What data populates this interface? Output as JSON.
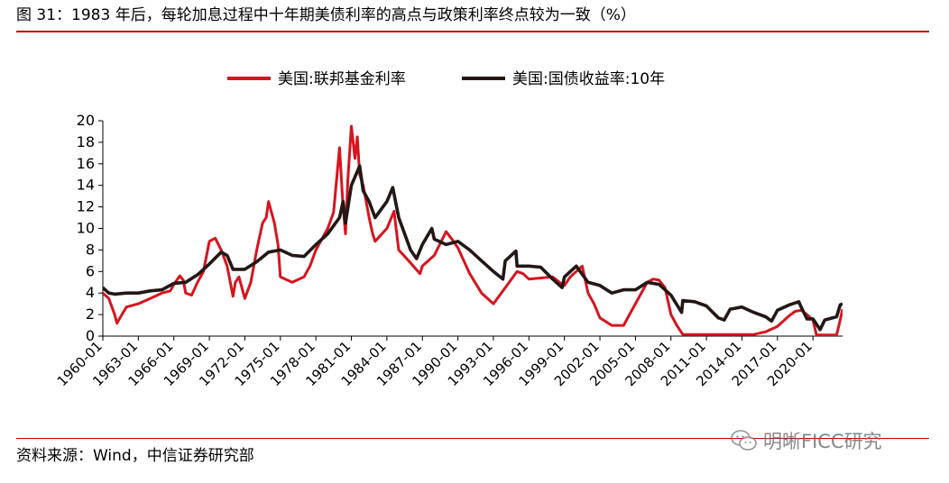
{
  "figure": {
    "title": "图 31：1983 年后，每轮加息过程中十年期美债利率的高点与政策利率终点较为一致（%）",
    "source": "资料来源：Wind，中信证券研究部",
    "watermark": "明晰FICC研究"
  },
  "chart_data": {
    "type": "line",
    "x_unit": "year",
    "xlim": [
      1960,
      2022.5
    ],
    "ylim": [
      0,
      20
    ],
    "y_ticks": [
      0,
      2,
      4,
      6,
      8,
      10,
      12,
      14,
      16,
      18,
      20
    ],
    "x_tick_labels": [
      "1960-01",
      "1963-01",
      "1966-01",
      "1969-01",
      "1972-01",
      "1975-01",
      "1978-01",
      "1981-01",
      "1984-01",
      "1987-01",
      "1990-01",
      "1993-01",
      "1996-01",
      "1999-01",
      "2002-01",
      "2005-01",
      "2008-01",
      "2011-01",
      "2014-01",
      "2017-01",
      "2020-01"
    ],
    "x_tick_values": [
      1960,
      1963,
      1966,
      1969,
      1972,
      1975,
      1978,
      1981,
      1984,
      1987,
      1990,
      1993,
      1996,
      1999,
      2002,
      2005,
      2008,
      2011,
      2014,
      2017,
      2020
    ],
    "legend": {
      "position": "top-center"
    },
    "grid": false,
    "series": [
      {
        "name": "美国:联邦基金利率",
        "color": "#d7141e",
        "x": [
          1960,
          1960.5,
          1961,
          1961.2,
          1961.5,
          1962,
          1963,
          1964,
          1965,
          1965.7,
          1966,
          1966.5,
          1966.8,
          1967,
          1967.5,
          1968,
          1968.5,
          1969,
          1969.5,
          1970,
          1970.5,
          1971,
          1971.2,
          1971.5,
          1972,
          1972.5,
          1973,
          1973.5,
          1973.8,
          1974,
          1974.5,
          1974.8,
          1975,
          1976,
          1977,
          1977.5,
          1978,
          1979,
          1979.5,
          1980,
          1980.3,
          1980.5,
          1980.7,
          1981,
          1981.3,
          1981.5,
          1981.7,
          1982,
          1982.5,
          1982.8,
          1983,
          1984,
          1984.6,
          1985,
          1986,
          1986.8,
          1987,
          1988,
          1989,
          1989.5,
          1990,
          1991,
          1992,
          1993,
          1994,
          1995,
          1995.5,
          1996,
          1998,
          1998.8,
          1999,
          1999.5,
          2000,
          2000.5,
          2001,
          2001.5,
          2002,
          2003,
          2004,
          2004.5,
          2005,
          2006,
          2006.5,
          2007,
          2007.5,
          2008,
          2008.5,
          2009,
          2015,
          2016,
          2017,
          2018,
          2018.5,
          2019,
          2019.5,
          2020,
          2020.3,
          2021,
          2022,
          2022.3,
          2022.5
        ],
        "y": [
          4.0,
          3.5,
          2.0,
          1.2,
          1.8,
          2.7,
          3.0,
          3.5,
          4.0,
          4.2,
          4.8,
          5.6,
          5.2,
          4.0,
          3.8,
          5.0,
          6.0,
          8.8,
          9.1,
          8.0,
          6.5,
          3.7,
          5.0,
          5.5,
          3.5,
          5.0,
          8.0,
          10.5,
          11.0,
          12.5,
          10.5,
          8.5,
          5.5,
          5.0,
          5.5,
          6.5,
          8.0,
          10.0,
          11.5,
          17.5,
          12.0,
          9.5,
          14.5,
          19.5,
          16.5,
          18.5,
          15.0,
          14.0,
          11.0,
          9.5,
          8.8,
          10.0,
          11.6,
          8.0,
          6.8,
          5.8,
          6.5,
          7.5,
          9.7,
          9.0,
          8.2,
          5.8,
          4.0,
          3.0,
          4.5,
          6.0,
          5.8,
          5.3,
          5.5,
          4.8,
          4.7,
          5.5,
          6.0,
          6.5,
          4.0,
          3.0,
          1.7,
          1.0,
          1.0,
          2.0,
          3.0,
          5.0,
          5.3,
          5.2,
          4.5,
          2.0,
          1.0,
          0.15,
          0.15,
          0.4,
          0.9,
          1.9,
          2.3,
          2.4,
          2.0,
          1.5,
          0.1,
          0.1,
          0.1,
          1.5,
          2.5
        ]
      },
      {
        "name": "美国:国债收益率:10年",
        "color": "#231815",
        "x": [
          1960,
          1960.5,
          1961,
          1962,
          1963,
          1964,
          1965,
          1966,
          1967,
          1968,
          1969,
          1970,
          1970.5,
          1971,
          1972,
          1973,
          1974,
          1975,
          1976,
          1977,
          1978,
          1979,
          1980,
          1980.3,
          1980.5,
          1981,
          1981.7,
          1982,
          1982.5,
          1983,
          1984,
          1984.5,
          1985,
          1986,
          1986.5,
          1987,
          1987.8,
          1988,
          1989,
          1990,
          1991,
          1992,
          1993,
          1993.8,
          1994,
          1994.9,
          1995,
          1996,
          1997,
          1998,
          1998.8,
          1999,
          2000,
          2001,
          2002,
          2003,
          2004,
          2005,
          2006,
          2007,
          2008,
          2008.9,
          2009,
          2010,
          2011,
          2012,
          2012.5,
          2013,
          2014,
          2015,
          2016,
          2016.5,
          2017,
          2018,
          2018.8,
          2019,
          2019.5,
          2020,
          2020.6,
          2021,
          2022,
          2022.3,
          2022.5
        ],
        "y": [
          4.5,
          4.0,
          3.9,
          4.0,
          4.0,
          4.2,
          4.3,
          4.9,
          5.0,
          5.7,
          6.7,
          7.8,
          7.5,
          6.2,
          6.2,
          6.9,
          7.8,
          8.0,
          7.5,
          7.4,
          8.5,
          9.5,
          11.0,
          12.5,
          10.5,
          14.0,
          15.8,
          13.5,
          12.5,
          11.0,
          12.5,
          13.8,
          11.0,
          8.0,
          7.2,
          8.5,
          10.0,
          9.0,
          8.5,
          8.8,
          8.0,
          7.0,
          6.0,
          5.3,
          7.0,
          7.9,
          6.5,
          6.5,
          6.4,
          5.3,
          4.5,
          5.5,
          6.5,
          5.0,
          4.7,
          4.0,
          4.3,
          4.3,
          5.0,
          4.8,
          3.8,
          2.2,
          3.3,
          3.2,
          2.8,
          1.7,
          1.5,
          2.5,
          2.7,
          2.2,
          1.8,
          1.4,
          2.4,
          2.9,
          3.2,
          2.7,
          1.6,
          1.6,
          0.6,
          1.5,
          1.8,
          2.9,
          3.0
        ]
      }
    ]
  }
}
